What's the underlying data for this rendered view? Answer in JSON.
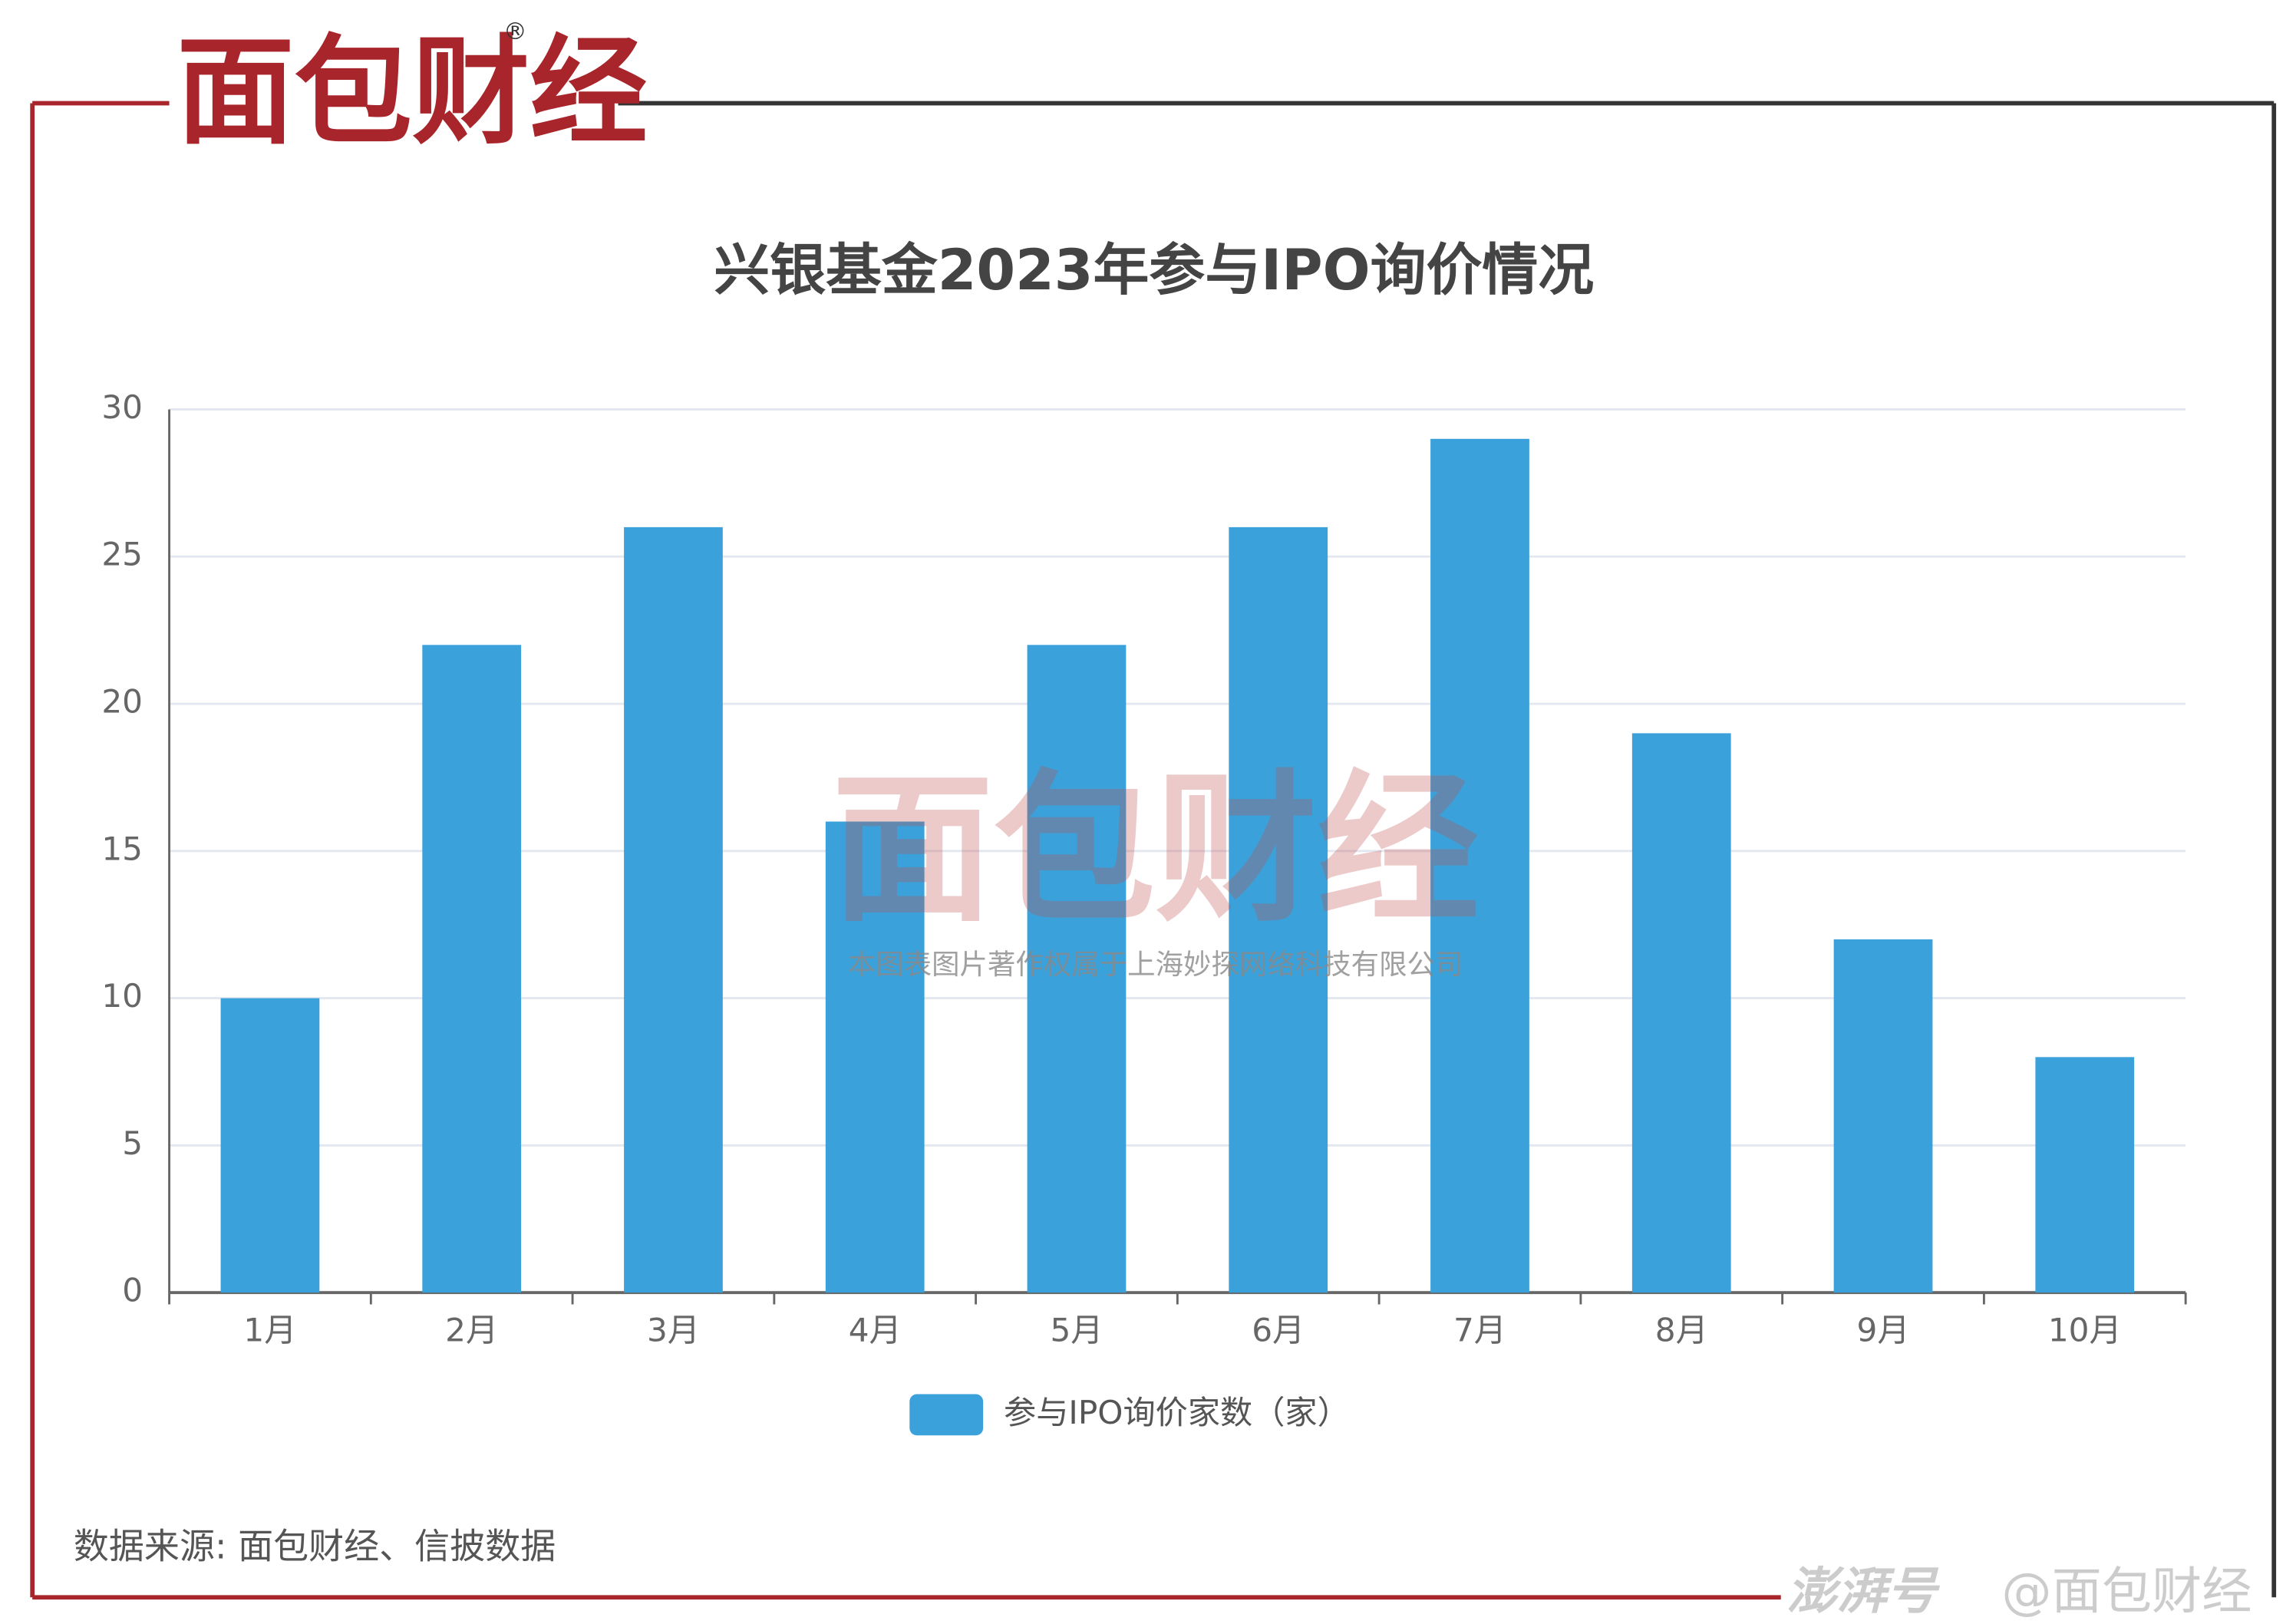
{
  "logo": {
    "text": "面包财经",
    "mark": "®"
  },
  "source": "数据来源: 面包财经、信披数据",
  "watermark": {
    "logo": "面包财经",
    "text": "本图表图片著作权属于上海妙探网络科技有限公司"
  },
  "footer": {
    "platform": "澎湃号",
    "account": "@面包财经"
  },
  "chart_data": {
    "type": "bar",
    "title": "兴银基金2023年参与IPO询价情况",
    "categories": [
      "1月",
      "2月",
      "3月",
      "4月",
      "5月",
      "6月",
      "7月",
      "8月",
      "9月",
      "10月"
    ],
    "series": [
      {
        "name": "参与IPO询价家数（家）",
        "color": "#3ba1da",
        "values": [
          10,
          22,
          26,
          16,
          22,
          26,
          29,
          19,
          12,
          8
        ]
      }
    ],
    "ylim": [
      0,
      30
    ],
    "yticks": [
      0,
      5,
      10,
      15,
      20,
      25,
      30
    ],
    "grid": true
  }
}
